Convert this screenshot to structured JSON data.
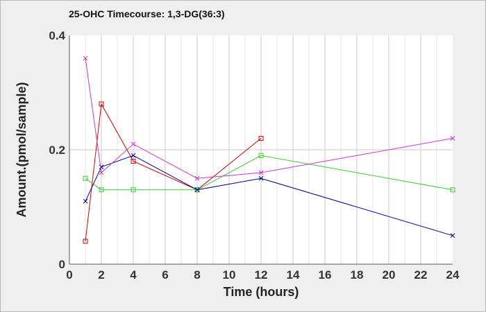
{
  "chart_data": {
    "type": "line",
    "title": "25-OHC Timecourse: 1,3-DG(36:3)",
    "xlabel": "Time (hours)",
    "ylabel": "Amount.(pmol/sample)",
    "xlim": [
      0,
      24
    ],
    "ylim": [
      0,
      0.4
    ],
    "x_ticks": [
      0,
      2,
      4,
      6,
      8,
      10,
      12,
      14,
      16,
      18,
      20,
      22,
      24
    ],
    "y_ticks": [
      0,
      0.2,
      0.4
    ],
    "x_tick_labels": [
      "0",
      "2",
      "4",
      "6",
      "8",
      "10",
      "12",
      "14",
      "16",
      "18",
      "20",
      "22",
      "24"
    ],
    "y_tick_labels": [
      "0",
      "0.2",
      "0.4"
    ],
    "grid": true,
    "series": [
      {
        "color": "#cc0000",
        "marker": "square",
        "x": [
          1,
          2,
          4,
          8,
          12
        ],
        "y": [
          0.04,
          0.28,
          0.18,
          0.13,
          0.22
        ]
      },
      {
        "color": "#33cc33",
        "marker": "square",
        "x": [
          1,
          2,
          4,
          8,
          12,
          24
        ],
        "y": [
          0.15,
          0.13,
          0.13,
          0.13,
          0.19,
          0.13
        ]
      },
      {
        "color": "#000099",
        "marker": "x",
        "x": [
          1,
          2,
          4,
          8,
          12,
          24
        ],
        "y": [
          0.11,
          0.17,
          0.19,
          0.13,
          0.15,
          0.05
        ]
      },
      {
        "color": "#cc33cc",
        "marker": "x",
        "x": [
          1,
          2,
          4,
          8,
          12,
          24
        ],
        "y": [
          0.36,
          0.16,
          0.21,
          0.15,
          0.16,
          0.22
        ]
      }
    ]
  }
}
